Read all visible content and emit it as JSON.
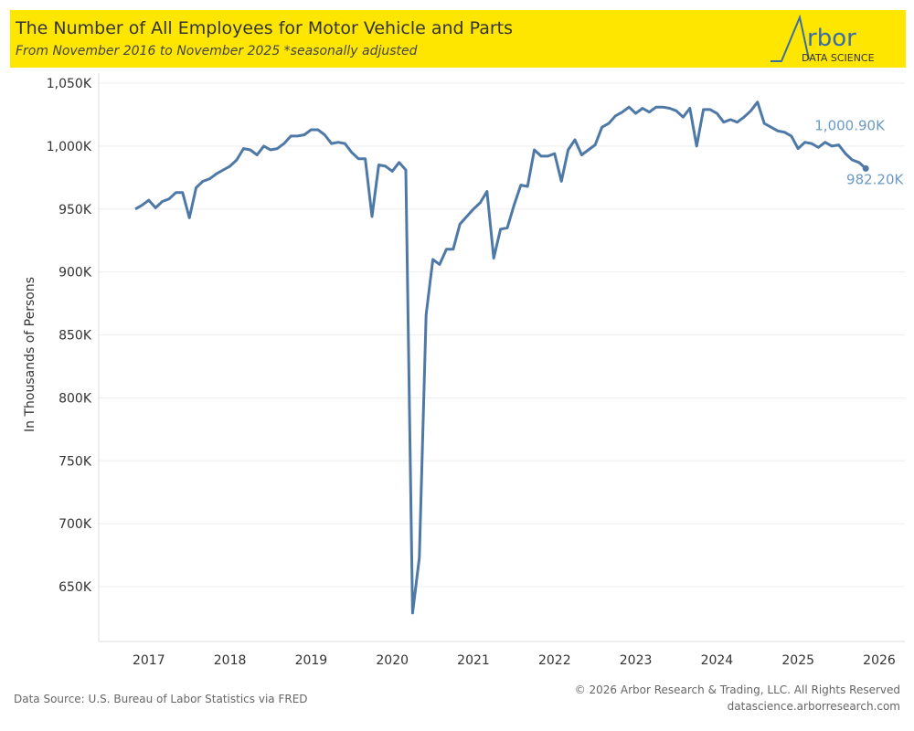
{
  "header": {
    "title": "The Number of All Employees for Motor Vehicle and Parts",
    "subtitle": "From November 2016 to November 2025 *seasonally adjusted",
    "logo_word": "rbor",
    "logo_sub": "DATA SCIENCE"
  },
  "footer": {
    "source": "Data Source: U.S. Bureau of Labor Statistics via FRED",
    "copyright": "© 2026 Arbor Research & Trading, LLC. All Rights Reserved",
    "site": "datascience.arborresearch.com"
  },
  "colors": {
    "line": "#4e79a7",
    "label": "#6a9ac4",
    "banner": "#ffe600"
  },
  "chart_data": {
    "type": "line",
    "title": "The Number of All Employees for Motor Vehicle and Parts",
    "ylabel": "In Thousands of Persons",
    "xlabel": "",
    "ylim": [
      620,
      1055
    ],
    "yticks": [
      650,
      700,
      750,
      800,
      850,
      900,
      950,
      1000,
      1050
    ],
    "ytick_labels": [
      "650K",
      "700K",
      "750K",
      "800K",
      "850K",
      "900K",
      "950K",
      "1,000K",
      "1,050K"
    ],
    "xticks": [
      "2017",
      "2018",
      "2019",
      "2020",
      "2021",
      "2022",
      "2023",
      "2024",
      "2025",
      "2026"
    ],
    "start": "2016-11",
    "frequency": "monthly",
    "values": [
      950,
      953,
      957,
      951,
      956,
      958,
      963,
      963,
      943,
      967,
      972,
      974,
      978,
      981,
      984,
      989,
      998,
      997,
      993,
      1000,
      997,
      998,
      1002,
      1008,
      1008,
      1009,
      1013,
      1013,
      1009,
      1002,
      1003,
      1002,
      995,
      990,
      990,
      944,
      985,
      984,
      980,
      987,
      981,
      629,
      673,
      866,
      910,
      906,
      918,
      918,
      938,
      944,
      950,
      955,
      964,
      911,
      934,
      935,
      953,
      969,
      968,
      997,
      992,
      992,
      994,
      972,
      997,
      1005,
      993,
      997,
      1001,
      1015,
      1018,
      1024,
      1027,
      1031,
      1026,
      1030,
      1027,
      1031,
      1031,
      1030,
      1028,
      1023,
      1030,
      1000,
      1029,
      1029,
      1026,
      1019,
      1021,
      1019,
      1023,
      1028,
      1035,
      1018,
      1015,
      1012,
      1011,
      1008,
      998,
      1003,
      1002,
      999,
      1003,
      1000,
      1000.9,
      994,
      989,
      987,
      982.2
    ],
    "annotations": [
      {
        "index": 104,
        "text": "1,000.90K"
      },
      {
        "index": 108,
        "text": "982.20K"
      }
    ]
  }
}
